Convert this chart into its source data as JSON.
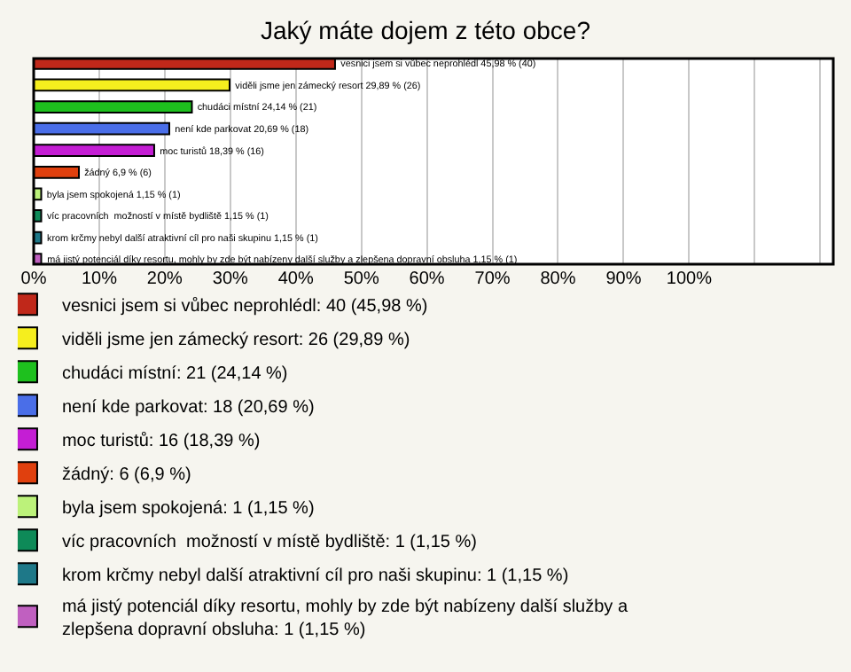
{
  "chart_data": {
    "type": "bar",
    "orientation": "horizontal",
    "title": "Jaký máte dojem z této obce?",
    "categories": [
      null,
      null,
      null,
      null,
      null,
      null,
      null,
      null,
      null,
      null
    ],
    "series": [
      {
        "name": "vesnici jsem si vůbec neprohlédl: 40 (45,98 %)",
        "color": "#c0281a",
        "values": [
          45.98,
          null,
          null,
          null,
          null,
          null,
          null,
          null,
          null,
          null
        ],
        "value_labels": [
          "vesnici jsem si vůbec neprohlédl 45,98 % (40)",
          null,
          null,
          null,
          null,
          null,
          null,
          null,
          null,
          null
        ]
      },
      {
        "name": "viděli jsme jen zámecký resort: 26 (29,89 %)",
        "color": "#f5ee1e",
        "values": [
          null,
          29.89,
          null,
          null,
          null,
          null,
          null,
          null,
          null,
          null
        ],
        "value_labels": [
          null,
          "viděli jsme jen zámecký resort 29,89 % (26)",
          null,
          null,
          null,
          null,
          null,
          null,
          null,
          null
        ]
      },
      {
        "name": "chudáci místní: 21 (24,14 %)",
        "color": "#1ec01e",
        "values": [
          null,
          null,
          24.14,
          null,
          null,
          null,
          null,
          null,
          null,
          null
        ],
        "value_labels": [
          null,
          null,
          "chudáci místní 24,14 % (21)",
          null,
          null,
          null,
          null,
          null,
          null,
          null
        ]
      },
      {
        "name": "není kde parkovat: 18 (20,69 %)",
        "color": "#4a6ee8",
        "values": [
          null,
          null,
          null,
          20.69,
          null,
          null,
          null,
          null,
          null,
          null
        ],
        "value_labels": [
          null,
          null,
          null,
          "není kde parkovat 20,69 % (18)",
          null,
          null,
          null,
          null,
          null,
          null
        ]
      },
      {
        "name": "moc turistů: 16 (18,39 %)",
        "color": "#c41ed4",
        "values": [
          null,
          null,
          null,
          null,
          18.39,
          null,
          null,
          null,
          null,
          null
        ],
        "value_labels": [
          null,
          null,
          null,
          null,
          "moc turistů 18,39 % (16)",
          null,
          null,
          null,
          null,
          null
        ]
      },
      {
        "name": "žádný: 6 (6,9 %)",
        "color": "#e0400e",
        "values": [
          null,
          null,
          null,
          null,
          null,
          6.9,
          null,
          null,
          null,
          null
        ],
        "value_labels": [
          null,
          null,
          null,
          null,
          null,
          "žádný 6,9 % (6)",
          null,
          null,
          null,
          null
        ]
      },
      {
        "name": "byla jsem spokojená: 1 (1,15 %)",
        "color": "#bcf27a",
        "values": [
          null,
          null,
          null,
          null,
          null,
          null,
          1.15,
          null,
          null,
          null
        ],
        "value_labels": [
          null,
          null,
          null,
          null,
          null,
          null,
          "byla jsem spokojená 1,15 % (1)",
          null,
          null,
          null
        ]
      },
      {
        "name": "víc pracovních  možností v místě bydliště: 1 (1,15 %)",
        "color": "#0e8a58",
        "values": [
          null,
          null,
          null,
          null,
          null,
          null,
          null,
          1.15,
          null,
          null
        ],
        "value_labels": [
          null,
          null,
          null,
          null,
          null,
          null,
          null,
          "víc pracovních  možností v místě bydliště 1,15 % (1)",
          null,
          null
        ]
      },
      {
        "name": "krom krčmy nebyl další atraktivní cíl pro naši skupinu: 1 (1,15 %)",
        "color": "#1e7888",
        "values": [
          null,
          null,
          null,
          null,
          null,
          null,
          null,
          null,
          1.15,
          null
        ],
        "value_labels": [
          null,
          null,
          null,
          null,
          null,
          null,
          null,
          null,
          "krom krčmy nebyl další atraktivní cíl pro naši skupinu 1,15 % (1)",
          null
        ]
      },
      {
        "name": "má jistý potenciál díky resortu, mohly by zde být nabízeny další služby a zlepšena dopravní obsluha: 1 (1,15 %)",
        "color": "#c060c0",
        "values": [
          null,
          null,
          null,
          null,
          null,
          null,
          null,
          null,
          null,
          1.15
        ],
        "value_labels": [
          null,
          null,
          null,
          null,
          null,
          null,
          null,
          null,
          null,
          "má jistý potenciál díky resortu, mohly by zde být nabízeny další služby a zlepšena dopravní obsluha 1,15 % (1)"
        ]
      }
    ],
    "xlim": [
      0,
      122
    ],
    "xticks": [
      {
        "value": 0,
        "label": "0%"
      },
      {
        "value": 10,
        "label": "10%"
      },
      {
        "value": 20,
        "label": "20%"
      },
      {
        "value": 30,
        "label": "30%"
      },
      {
        "value": 40,
        "label": "40%"
      },
      {
        "value": 50,
        "label": "50%"
      },
      {
        "value": 60,
        "label": "60%"
      },
      {
        "value": 70,
        "label": "70%"
      },
      {
        "value": 80,
        "label": "80%"
      },
      {
        "value": 90,
        "label": "90%"
      },
      {
        "value": 100,
        "label": "100%"
      },
      {
        "value": 110,
        "label": null
      },
      {
        "value": 120,
        "label": null
      }
    ],
    "grid": "x",
    "legend": "bottom",
    "tick_labels": "x"
  }
}
